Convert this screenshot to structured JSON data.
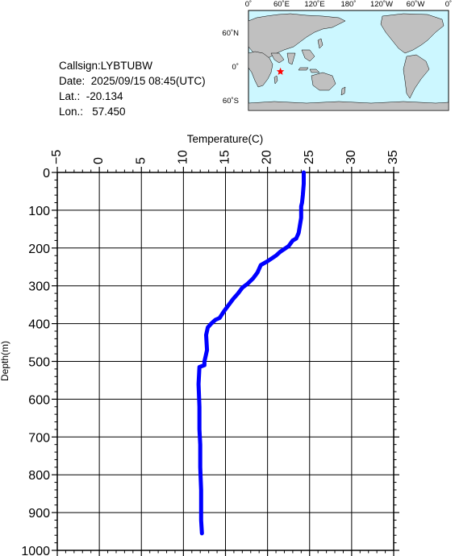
{
  "station": {
    "callsign_line": "Callsign:LYBTUBW",
    "date_line": "Date:  2025/09/15 08:45(UTC)",
    "lat_line": "Lat.:  -20.134",
    "lon_line": "Lon.:   57.450"
  },
  "map": {
    "top_labels": [
      "0˚",
      "60˚E",
      "120˚E",
      "180˚",
      "120˚W",
      "60˚W",
      "0˚"
    ],
    "lat_labels": [
      "60˚N",
      "0˚",
      "60˚S"
    ],
    "ocean_color": "#ccf7ff",
    "land_color": "#c0c0c0",
    "marker_color": "#ff0000",
    "marker_lat": -20.134,
    "marker_lon": 57.45
  },
  "chart_data": {
    "type": "line",
    "title": "",
    "xlabel": "Temperature(C)",
    "ylabel": "Depth(m)",
    "xlim": [
      -5,
      35
    ],
    "ylim": [
      0,
      1000
    ],
    "y_inverted": true,
    "x_axis_position": "top",
    "x_ticks": [
      -5,
      0,
      5,
      10,
      15,
      20,
      25,
      30,
      35
    ],
    "y_ticks": [
      0,
      100,
      200,
      300,
      400,
      500,
      600,
      700,
      800,
      900,
      1000
    ],
    "grid": true,
    "line_color": "#0000ff",
    "series": [
      {
        "x": [
          24.3,
          24.3,
          24.2,
          24.1,
          24.0,
          24.0,
          23.7,
          23.4,
          23.0,
          22.5,
          21.5,
          21.0,
          20.0,
          19.2,
          18.8,
          18.3,
          17.6,
          17.0,
          16.5,
          15.9,
          15.4,
          14.8,
          14.3,
          13.8,
          13.3,
          12.9,
          12.7,
          12.8,
          12.6,
          12.5,
          12.5,
          11.9,
          11.8,
          11.9,
          11.9,
          12.0,
          12.0,
          12.1,
          12.1,
          12.1,
          12.2
        ],
        "y": [
          0,
          30,
          60,
          80,
          90,
          120,
          160,
          175,
          180,
          195,
          210,
          220,
          235,
          245,
          265,
          280,
          295,
          305,
          320,
          335,
          350,
          368,
          385,
          390,
          400,
          410,
          430,
          470,
          490,
          500,
          510,
          515,
          560,
          620,
          680,
          720,
          780,
          840,
          880,
          920,
          955
        ]
      }
    ]
  }
}
